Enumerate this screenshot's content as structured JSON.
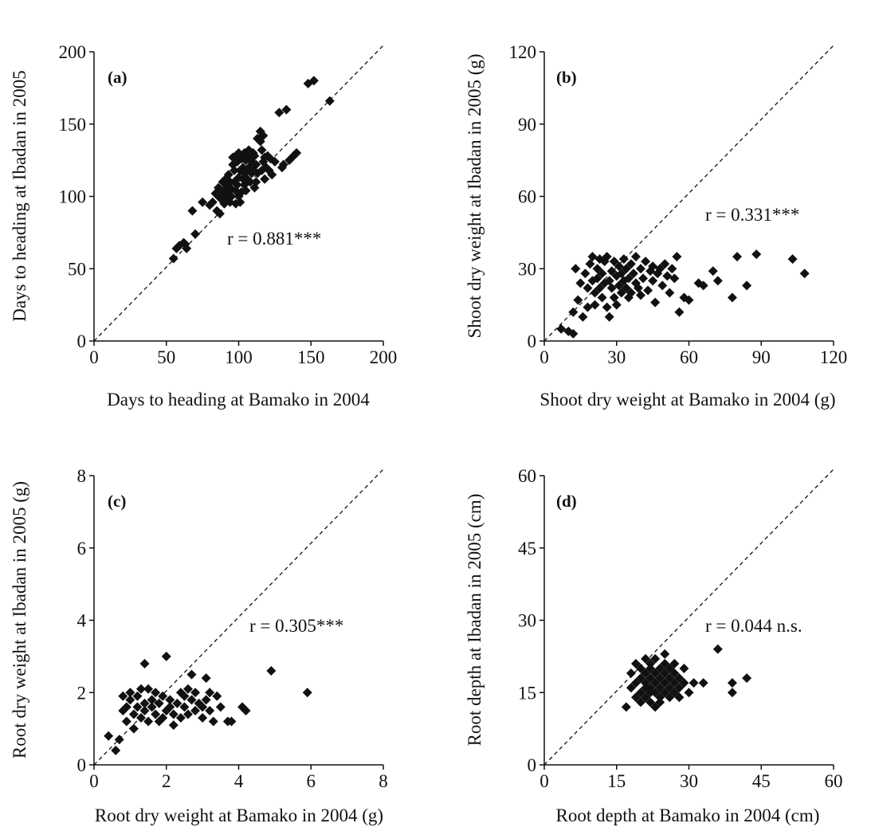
{
  "chart_data": [
    {
      "type": "scatter",
      "panel_label": "(a)",
      "xlabel": "Days to heading at Bamako in 2004",
      "ylabel": "Days to heading at Ibadan in 2005",
      "xlim": [
        0,
        200
      ],
      "ylim": [
        0,
        200
      ],
      "xticks": [
        "0",
        "50",
        "100",
        "150",
        "200"
      ],
      "yticks": [
        "0",
        "50",
        "100",
        "150",
        "200"
      ],
      "annotation": "r = 0.881***",
      "reference_line": "1:1 dashed",
      "marker": "diamond",
      "x": [
        55,
        57,
        59,
        62,
        63,
        64,
        68,
        70,
        75,
        80,
        82,
        84,
        85,
        86,
        86,
        87,
        88,
        88,
        89,
        90,
        90,
        90,
        91,
        91,
        92,
        92,
        93,
        93,
        94,
        94,
        95,
        95,
        96,
        96,
        97,
        97,
        98,
        98,
        98,
        99,
        99,
        100,
        100,
        100,
        101,
        101,
        102,
        102,
        103,
        103,
        104,
        104,
        104,
        105,
        105,
        106,
        106,
        106,
        107,
        107,
        108,
        108,
        109,
        109,
        110,
        110,
        111,
        111,
        112,
        112,
        113,
        113,
        115,
        115,
        116,
        116,
        117,
        117,
        118,
        118,
        119,
        120,
        121,
        122,
        123,
        125,
        128,
        130,
        131,
        133,
        135,
        138,
        140,
        148,
        152,
        163
      ],
      "y": [
        57,
        64,
        66,
        68,
        67,
        64,
        90,
        74,
        96,
        94,
        96,
        102,
        90,
        100,
        106,
        88,
        104,
        98,
        110,
        100,
        95,
        104,
        112,
        108,
        98,
        106,
        102,
        115,
        96,
        110,
        105,
        100,
        122,
        127,
        110,
        118,
        95,
        128,
        104,
        108,
        124,
        130,
        100,
        113,
        96,
        118,
        126,
        103,
        120,
        112,
        130,
        108,
        116,
        125,
        104,
        118,
        128,
        112,
        132,
        120,
        110,
        126,
        124,
        116,
        118,
        130,
        106,
        128,
        122,
        110,
        140,
        116,
        138,
        145,
        118,
        132,
        142,
        124,
        127,
        112,
        120,
        128,
        118,
        126,
        115,
        124,
        158,
        120,
        122,
        160,
        125,
        128,
        130,
        178,
        180,
        166
      ]
    },
    {
      "type": "scatter",
      "panel_label": "(b)",
      "xlabel": "Shoot dry weight at Bamako in 2004 (g)",
      "ylabel": "Shoot dry weight at Ibadan in 2005 (g)",
      "xlim": [
        0,
        120
      ],
      "ylim": [
        0,
        120
      ],
      "xticks": [
        "0",
        "30",
        "60",
        "90",
        "120"
      ],
      "yticks": [
        "0",
        "30",
        "60",
        "90",
        "120"
      ],
      "annotation": "r = 0.331***",
      "reference_line": "1:1 dashed",
      "marker": "diamond",
      "x": [
        7,
        10,
        12,
        12,
        13,
        14,
        15,
        16,
        17,
        18,
        18,
        19,
        20,
        20,
        21,
        21,
        22,
        22,
        23,
        23,
        24,
        24,
        25,
        25,
        26,
        26,
        27,
        27,
        28,
        28,
        29,
        29,
        30,
        30,
        31,
        31,
        32,
        32,
        33,
        33,
        34,
        34,
        35,
        35,
        36,
        36,
        37,
        38,
        38,
        39,
        40,
        40,
        41,
        42,
        43,
        44,
        45,
        45,
        46,
        47,
        48,
        49,
        50,
        51,
        52,
        53,
        54,
        55,
        56,
        58,
        60,
        64,
        66,
        70,
        72,
        78,
        80,
        84,
        88,
        103,
        108
      ],
      "y": [
        5,
        4,
        3,
        12,
        30,
        17,
        24,
        10,
        28,
        22,
        14,
        32,
        35,
        25,
        20,
        15,
        30,
        26,
        34,
        22,
        28,
        18,
        33,
        24,
        14,
        35,
        25,
        10,
        29,
        22,
        33,
        18,
        27,
        15,
        31,
        23,
        28,
        20,
        34,
        25,
        22,
        30,
        18,
        26,
        32,
        20,
        28,
        24,
        35,
        22,
        30,
        19,
        26,
        33,
        21,
        29,
        25,
        31,
        16,
        28,
        30,
        23,
        32,
        27,
        20,
        30,
        26,
        35,
        12,
        18,
        17,
        24,
        23,
        29,
        25,
        18,
        35,
        23,
        36,
        34,
        28
      ]
    },
    {
      "type": "scatter",
      "panel_label": "(c)",
      "xlabel": "Root dry weight at Bamako in 2004 (g)",
      "ylabel": "Root dry weight at Ibadan in 2005 (g)",
      "xlim": [
        0,
        8
      ],
      "ylim": [
        0,
        8
      ],
      "xticks": [
        "0",
        "2",
        "4",
        "6",
        "8"
      ],
      "yticks": [
        "0",
        "2",
        "4",
        "6",
        "8"
      ],
      "annotation": "r = 0.305***",
      "reference_line": "1:1 dashed",
      "marker": "diamond",
      "x": [
        0.4,
        0.6,
        0.7,
        0.8,
        0.8,
        0.9,
        0.9,
        1.0,
        1.0,
        1.1,
        1.1,
        1.2,
        1.2,
        1.3,
        1.3,
        1.4,
        1.4,
        1.4,
        1.5,
        1.5,
        1.6,
        1.6,
        1.7,
        1.7,
        1.8,
        1.8,
        1.9,
        1.9,
        2.0,
        2.0,
        2.1,
        2.1,
        2.2,
        2.2,
        2.3,
        2.4,
        2.4,
        2.5,
        2.5,
        2.6,
        2.6,
        2.7,
        2.7,
        2.8,
        2.8,
        2.9,
        3.0,
        3.0,
        3.1,
        3.1,
        3.2,
        3.2,
        3.3,
        3.4,
        3.5,
        3.7,
        3.8,
        4.1,
        4.2,
        4.9,
        5.9
      ],
      "y": [
        0.8,
        0.4,
        0.7,
        1.9,
        1.5,
        1.6,
        1.2,
        1.8,
        2.0,
        1.4,
        1.0,
        1.9,
        1.6,
        2.1,
        1.3,
        1.5,
        2.8,
        1.7,
        1.2,
        2.1,
        1.6,
        1.8,
        1.4,
        2.0,
        1.2,
        1.7,
        1.3,
        1.9,
        3.0,
        1.5,
        1.6,
        1.8,
        1.4,
        1.1,
        1.7,
        2.0,
        1.3,
        1.9,
        1.6,
        1.4,
        2.1,
        1.8,
        2.5,
        1.5,
        2.0,
        1.7,
        1.6,
        1.3,
        2.4,
        1.8,
        1.5,
        2.0,
        1.2,
        1.9,
        1.6,
        1.2,
        1.2,
        1.6,
        1.5,
        2.6,
        2.0
      ]
    },
    {
      "type": "scatter",
      "panel_label": "(d)",
      "xlabel": "Root depth at Bamako in 2004 (cm)",
      "ylabel": "Root depth at Ibadan in 2005 (cm)",
      "xlim": [
        0,
        60
      ],
      "ylim": [
        0,
        60
      ],
      "xticks": [
        "0",
        "15",
        "30",
        "45",
        "60"
      ],
      "yticks": [
        "0",
        "15",
        "30",
        "45",
        "60"
      ],
      "annotation": "r = 0.044 n.s.",
      "reference_line": "1:1 dashed",
      "marker": "diamond",
      "x": [
        17,
        18,
        18,
        19,
        19,
        19,
        20,
        20,
        20,
        20,
        21,
        21,
        21,
        21,
        21,
        22,
        22,
        22,
        22,
        22,
        22,
        23,
        23,
        23,
        23,
        23,
        24,
        24,
        24,
        24,
        24,
        25,
        25,
        25,
        25,
        25,
        26,
        26,
        26,
        26,
        27,
        27,
        27,
        27,
        28,
        28,
        28,
        29,
        29,
        30,
        31,
        33,
        36,
        39,
        39,
        42
      ],
      "y": [
        12,
        16,
        19,
        14,
        17,
        21,
        15,
        18,
        20,
        13,
        16,
        19,
        22,
        14,
        17,
        15,
        18,
        21,
        13,
        20,
        16,
        17,
        12,
        19,
        15,
        22,
        14,
        18,
        16,
        20,
        13,
        17,
        21,
        15,
        19,
        23,
        16,
        14,
        18,
        20,
        17,
        15,
        19,
        21,
        16,
        18,
        14,
        17,
        20,
        15,
        17,
        17,
        24,
        15,
        17,
        18
      ]
    }
  ]
}
